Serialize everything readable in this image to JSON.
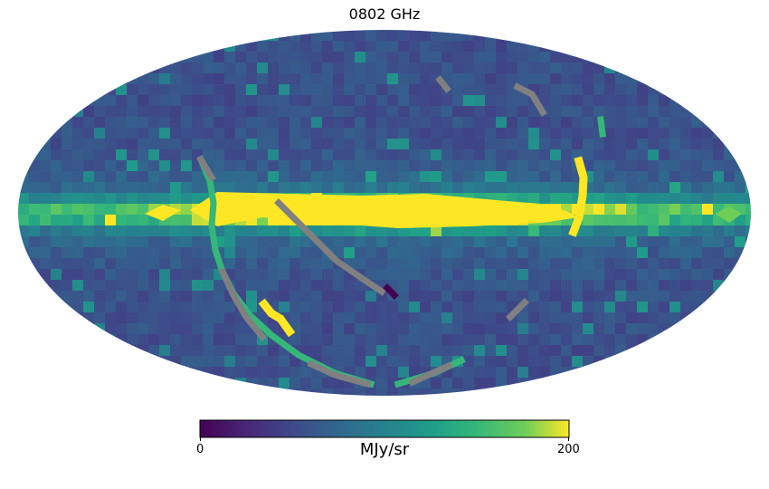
{
  "chart_data": {
    "type": "heatmap",
    "projection": "mollweide",
    "title": "0802 GHz",
    "colorbar": {
      "label": "MJy/sr",
      "min": 0,
      "max": 200,
      "ticks": [
        "0",
        "200"
      ],
      "colormap": "viridis",
      "orientation": "horizontal",
      "placement": "bottom"
    },
    "masked_color": "#808080",
    "features": [
      "bright galactic plane band near latitude 0 reaching the colormap maximum",
      "grey masked scan stripes with no data",
      "diffuse low emission at high galactic latitudes"
    ]
  }
}
